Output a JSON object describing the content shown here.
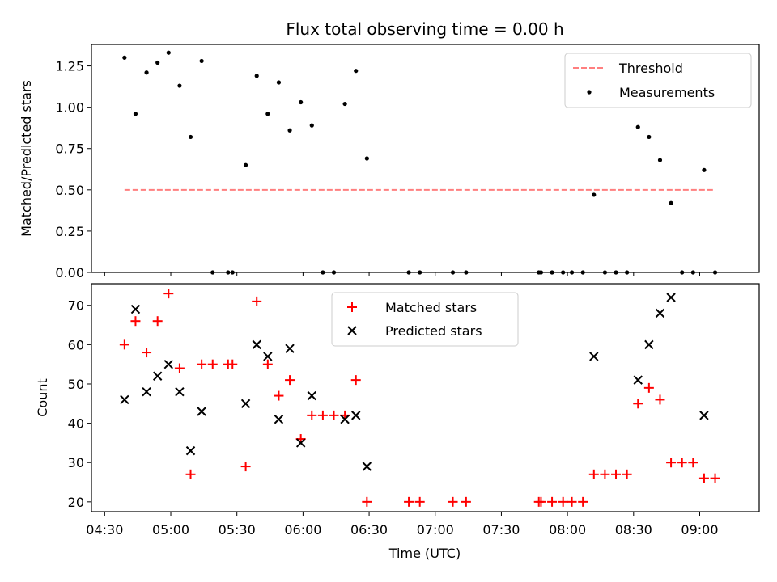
{
  "chart_data": [
    {
      "type": "scatter",
      "title": "Flux total observing time = 0.00 h",
      "xlabel": "",
      "ylabel": "Matched/Predicted stars",
      "xlim": [
        "04:24",
        "09:27"
      ],
      "ylim": [
        0,
        1.38
      ],
      "yticks": [
        "0.00",
        "0.25",
        "0.50",
        "0.75",
        "1.00",
        "1.25"
      ],
      "ytick_values": [
        0,
        0.25,
        0.5,
        0.75,
        1.0,
        1.25
      ],
      "xticks_shown": false,
      "legend": {
        "position": "upper right",
        "entries": [
          "Threshold",
          "Measurements"
        ]
      },
      "series": [
        {
          "name": "Threshold",
          "kind": "dashed-line",
          "color": "#ff7f7f",
          "x": [
            "04:39",
            "09:06"
          ],
          "y": [
            0.5,
            0.5
          ]
        },
        {
          "name": "Measurements",
          "kind": "dot",
          "color": "#000000",
          "x": [
            "04:39",
            "04:44",
            "04:49",
            "04:54",
            "04:59",
            "05:04",
            "05:09",
            "05:14",
            "05:19",
            "05:26",
            "05:28",
            "05:34",
            "05:39",
            "05:44",
            "05:49",
            "05:54",
            "05:59",
            "06:04",
            "06:09",
            "06:14",
            "06:19",
            "06:24",
            "06:29",
            "06:48",
            "06:53",
            "07:08",
            "07:14",
            "07:47",
            "07:48",
            "07:53",
            "07:58",
            "08:02",
            "08:07",
            "08:12",
            "08:17",
            "08:22",
            "08:27",
            "08:32",
            "08:37",
            "08:42",
            "08:47",
            "08:52",
            "08:57",
            "09:02",
            "09:07"
          ],
          "y": [
            1.3,
            0.96,
            1.21,
            1.27,
            1.33,
            1.13,
            0.82,
            1.28,
            0.0,
            0.0,
            0.0,
            0.65,
            1.19,
            0.96,
            1.15,
            0.86,
            1.03,
            0.89,
            0.0,
            0.0,
            1.02,
            1.22,
            0.69,
            0.0,
            0.0,
            0.0,
            0.0,
            0.0,
            0.0,
            0.0,
            0.0,
            0.0,
            0.0,
            0.47,
            0.0,
            0.0,
            0.0,
            0.88,
            0.82,
            0.68,
            0.42,
            0.0,
            0.0,
            0.62,
            0.0
          ]
        }
      ]
    },
    {
      "type": "scatter",
      "title": "",
      "xlabel": "Time (UTC)",
      "ylabel": "Count",
      "xlim": [
        "04:24",
        "09:27"
      ],
      "ylim": [
        17.5,
        75.5
      ],
      "yticks": [
        "20",
        "30",
        "40",
        "50",
        "60",
        "70"
      ],
      "ytick_values": [
        20,
        30,
        40,
        50,
        60,
        70
      ],
      "xticks": [
        "04:30",
        "05:00",
        "05:30",
        "06:00",
        "06:30",
        "07:00",
        "07:30",
        "08:00",
        "08:30",
        "09:00"
      ],
      "legend": {
        "position": "upper center",
        "entries": [
          "Matched stars",
          "Predicted stars"
        ]
      },
      "series": [
        {
          "name": "Matched stars",
          "kind": "plus",
          "color": "#ff0000",
          "x": [
            "04:39",
            "04:44",
            "04:49",
            "04:54",
            "04:59",
            "05:04",
            "05:09",
            "05:14",
            "05:19",
            "05:26",
            "05:28",
            "05:34",
            "05:39",
            "05:44",
            "05:49",
            "05:54",
            "05:59",
            "06:04",
            "06:09",
            "06:14",
            "06:19",
            "06:24",
            "06:29",
            "06:48",
            "06:53",
            "07:08",
            "07:14",
            "07:47",
            "07:48",
            "07:53",
            "07:58",
            "08:02",
            "08:07",
            "08:12",
            "08:17",
            "08:22",
            "08:27",
            "08:32",
            "08:37",
            "08:42",
            "08:47",
            "08:52",
            "08:57",
            "09:02",
            "09:07"
          ],
          "y": [
            60,
            66,
            58,
            66,
            73,
            54,
            27,
            55,
            55,
            55,
            55,
            29,
            71,
            55,
            47,
            51,
            36,
            42,
            42,
            42,
            42,
            51,
            20,
            20,
            20,
            20,
            20,
            20,
            20,
            20,
            20,
            20,
            20,
            27,
            27,
            27,
            27,
            45,
            49,
            46,
            30,
            30,
            30,
            26,
            26
          ]
        },
        {
          "name": "Predicted stars",
          "kind": "x",
          "color": "#000000",
          "x": [
            "04:39",
            "04:44",
            "04:49",
            "04:54",
            "04:59",
            "05:04",
            "05:09",
            "05:14",
            "05:34",
            "05:39",
            "05:44",
            "05:49",
            "05:54",
            "05:59",
            "06:04",
            "06:19",
            "06:24",
            "06:29",
            "08:12",
            "08:32",
            "08:37",
            "08:42",
            "08:47",
            "09:02"
          ],
          "y": [
            46,
            69,
            48,
            52,
            55,
            48,
            33,
            43,
            45,
            60,
            57,
            41,
            59,
            35,
            47,
            41,
            42,
            29,
            57,
            51,
            60,
            68,
            72,
            42
          ]
        }
      ]
    }
  ]
}
